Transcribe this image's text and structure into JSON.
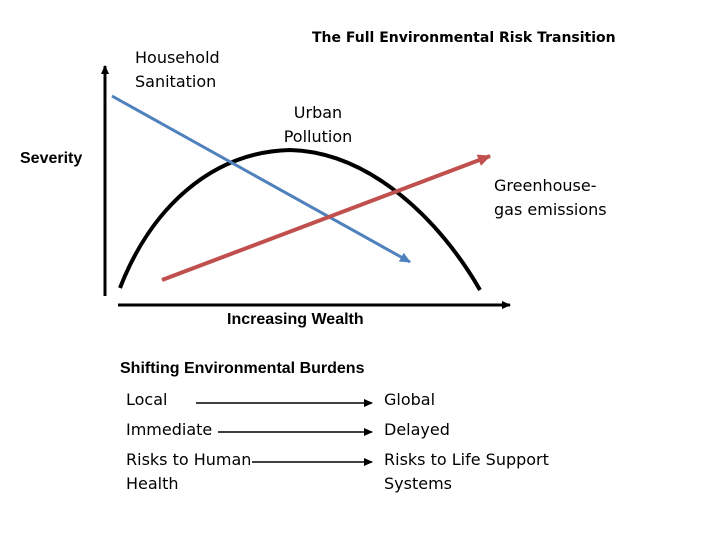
{
  "title": "The Full Environmental Risk Transition",
  "axes": {
    "y_label": "Severity",
    "x_label": "Increasing Wealth"
  },
  "curves": {
    "household": {
      "label_lines": [
        "Household",
        "Sanitation"
      ],
      "color": "#4f81bd"
    },
    "urban": {
      "label_lines": [
        "Urban",
        "Pollution"
      ],
      "color": "#000000"
    },
    "greenhouse": {
      "label_lines": [
        "Greenhouse-",
        "gas emissions"
      ],
      "color": "#c0504d"
    }
  },
  "burdens": {
    "heading": "Shifting Environmental Burdens",
    "rows": [
      {
        "from_lines": [
          "Local"
        ],
        "to_lines": [
          "Global"
        ]
      },
      {
        "from_lines": [
          "Immediate"
        ],
        "to_lines": [
          "Delayed"
        ]
      },
      {
        "from_lines": [
          "Risks to Human",
          "Health"
        ],
        "to_lines": [
          "Risks to Life Support",
          "Systems"
        ]
      }
    ]
  }
}
